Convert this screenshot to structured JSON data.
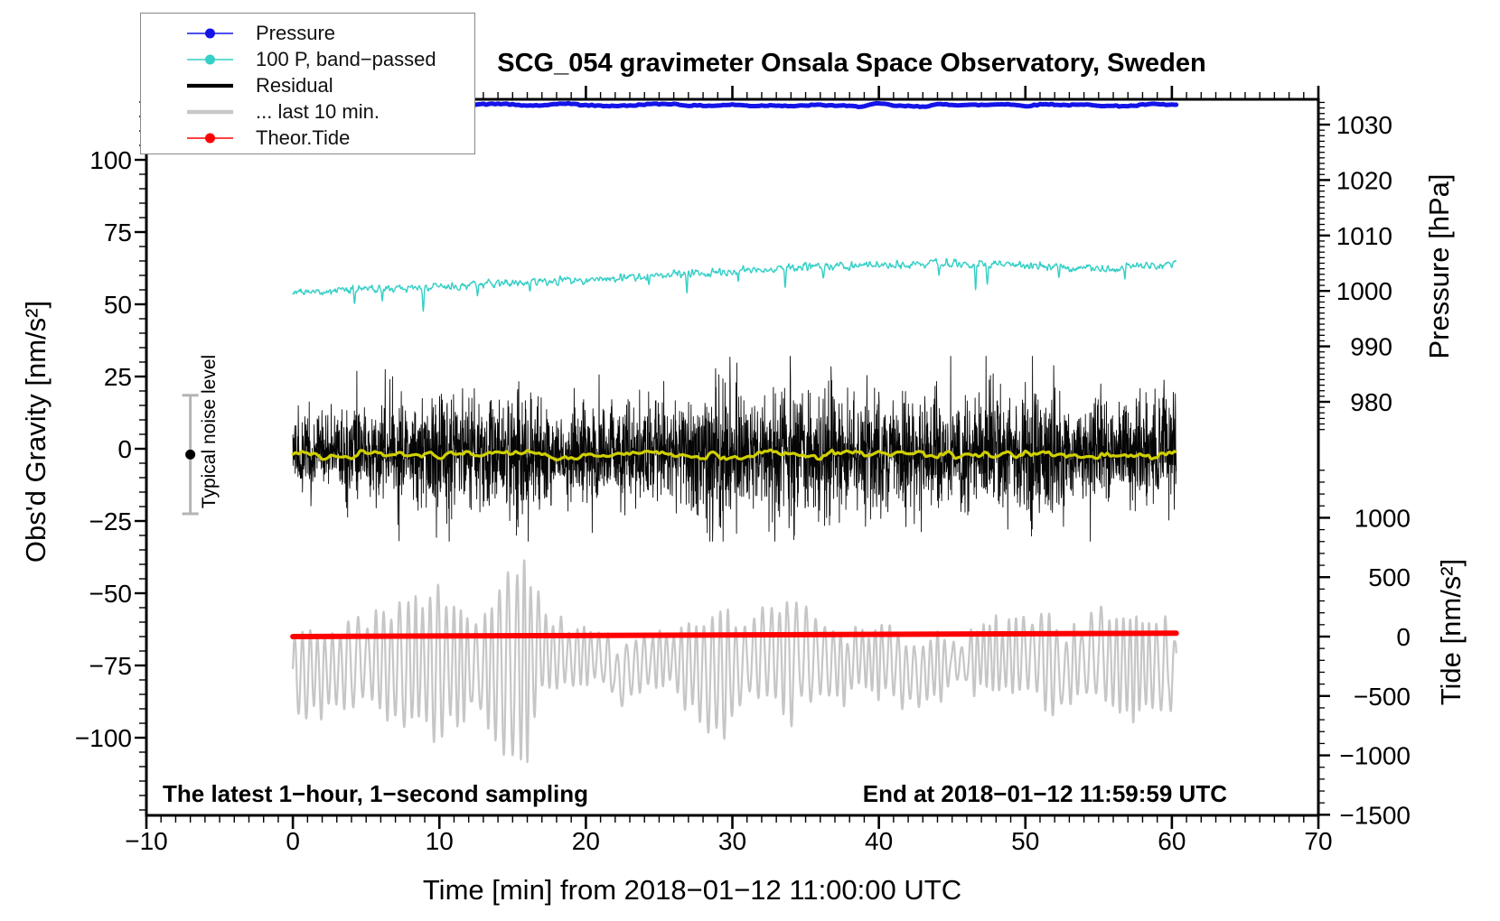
{
  "title": "SCG_054 gravimeter Onsala Space Observatory, Sweden",
  "annotations": {
    "sampling_note": "The latest 1−hour, 1−second sampling",
    "end_note": "End at 2018−01−12 11:59:59 UTC"
  },
  "legend": {
    "items": [
      {
        "label": "Pressure",
        "color": "#1414e8",
        "line_width": 1.6,
        "marker": true
      },
      {
        "label": "100 P, band−passed",
        "color": "#35cfc7",
        "line_width": 1.6,
        "marker": true
      },
      {
        "label": "Residual",
        "color": "#000000",
        "line_width": 4.2,
        "marker": false
      },
      {
        "label": "... last 10 min.",
        "color": "#c8c8c8",
        "line_width": 4.6,
        "marker": false
      },
      {
        "label": "Theor.Tide",
        "color": "#ff0000",
        "line_width": 1.6,
        "marker": true
      }
    ]
  },
  "chart_data": {
    "type": "line",
    "title": "SCG_054 gravimeter Onsala Space Observatory, Sweden",
    "xlabel": "Time [min] from 2018−01−12 11:00:00 UTC",
    "x_range": [
      -10,
      70
    ],
    "x_major_ticks": [
      -10,
      0,
      10,
      20,
      30,
      40,
      50,
      60,
      70
    ],
    "x_minor_step": 1,
    "data_x_range": [
      0,
      60.3
    ],
    "grid": false,
    "legend_position": "top-left",
    "axes": {
      "gravity": {
        "label": "Obs'd Gravity [nm/s²]",
        "side": "left",
        "ticks": [
          100,
          75,
          50,
          25,
          0,
          -25,
          -50,
          -75,
          -100
        ],
        "minor_step": 5,
        "range_approx": [
          -127,
          121
        ]
      },
      "pressure": {
        "label": "Pressure [hPa]",
        "side": "right-top",
        "ticks": [
          1030,
          1020,
          1010,
          1000,
          990,
          980
        ],
        "minor_step": 1
      },
      "tide": {
        "label": "Tide [nm/s²]",
        "side": "right-bottom",
        "ticks": [
          1000,
          500,
          0,
          -500,
          -1000,
          -1500
        ],
        "minor_step": 100
      }
    },
    "series": [
      {
        "name": "pressure",
        "legend": "Pressure",
        "axis": "pressure",
        "color": "#1414e8",
        "width": 5,
        "base_hPa": 1033.55,
        "variation_hPa": 0.3
      },
      {
        "name": "pressure_bandpassed_x100",
        "legend": "100 P, band−passed",
        "axis": "gravity",
        "color": "#35cfc7",
        "width": 1.4,
        "control_points": [
          [
            0,
            54
          ],
          [
            5,
            55.5
          ],
          [
            10,
            56
          ],
          [
            15,
            57.5
          ],
          [
            20,
            58.5
          ],
          [
            25,
            60
          ],
          [
            30,
            61.5
          ],
          [
            35,
            63
          ],
          [
            40,
            63.5
          ],
          [
            45,
            64.5
          ],
          [
            50,
            63.5
          ],
          [
            55,
            62.5
          ],
          [
            60.3,
            64
          ]
        ],
        "noise_amp": 1.2,
        "dips": [
          [
            4.2,
            5
          ],
          [
            6.1,
            4
          ],
          [
            8.9,
            8
          ],
          [
            12.6,
            4
          ],
          [
            16.2,
            3
          ],
          [
            24.3,
            4
          ],
          [
            26.9,
            6
          ],
          [
            30.4,
            4
          ],
          [
            33.6,
            7
          ],
          [
            36.2,
            4
          ],
          [
            44.1,
            3
          ],
          [
            46.6,
            9
          ],
          [
            47.4,
            6
          ],
          [
            52.3,
            4
          ],
          [
            56.8,
            4
          ]
        ]
      },
      {
        "name": "residual",
        "legend": "Residual",
        "axis": "gravity",
        "color": "#060606",
        "width": 0.9,
        "mean": -1.5,
        "clip": 32,
        "std_per_minute": [
          5,
          7,
          7,
          7,
          8,
          8,
          8,
          9,
          9,
          10,
          11,
          9,
          9,
          10,
          9,
          11,
          10,
          9,
          9,
          8,
          9,
          8,
          8,
          9,
          9,
          9,
          10,
          10,
          12,
          14,
          12,
          9,
          10,
          11,
          12,
          10,
          11,
          10,
          9,
          10,
          11,
          10,
          9,
          10,
          11,
          9,
          9,
          10,
          11,
          10,
          12,
          13,
          12,
          9,
          9,
          10,
          9,
          9,
          9,
          10,
          12
        ]
      },
      {
        "name": "residual_smoothed",
        "legend": null,
        "axis": "gravity",
        "color": "#cfcf00",
        "width": 3.2,
        "base": -2.2,
        "wiggle_amp": 1.3
      },
      {
        "name": "microseism_last10min",
        "legend": "... last 10 min.",
        "axis": "gravity",
        "color": "#c6c6c6",
        "width": 2.2,
        "center": -74,
        "period_min": 0.55,
        "amp_per_minute": [
          12,
          14,
          13,
          12,
          12,
          14,
          18,
          20,
          22,
          20,
          24,
          20,
          16,
          14,
          26,
          32,
          28,
          14,
          10,
          9,
          10,
          10,
          9,
          10,
          9,
          9,
          10,
          14,
          18,
          20,
          16,
          13,
          14,
          16,
          20,
          16,
          14,
          12,
          10,
          10,
          12,
          11,
          12,
          11,
          10,
          8,
          9,
          10,
          11,
          12,
          13,
          15,
          17,
          13,
          14,
          15,
          17,
          16,
          14,
          16,
          14
        ]
      },
      {
        "name": "theoretical_tide",
        "legend": "Theor.Tide",
        "axis": "tide",
        "color": "#ff0000",
        "width": 6,
        "points": [
          [
            0,
            0
          ],
          [
            60.3,
            28
          ]
        ]
      }
    ],
    "noise_marker": {
      "x_min": -7,
      "center": -2,
      "half_range": 20.5,
      "label": "Typical noise level",
      "color": "#b5b5b5"
    }
  }
}
